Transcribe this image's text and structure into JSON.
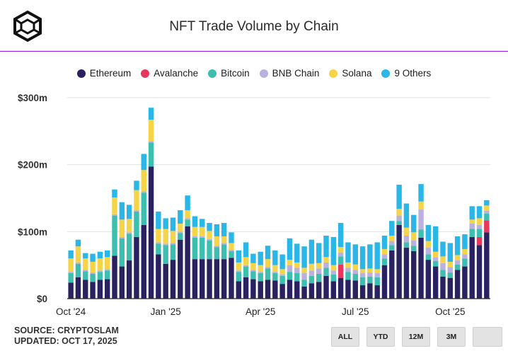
{
  "title": "NFT Trade Volume by Chain",
  "source": "SOURCE: CRYPTOSLAM",
  "updated": "UPDATED: OCT 17, 2025",
  "buttons": [
    "ALL",
    "YTD",
    "12M",
    "3M",
    ""
  ],
  "chart_data": {
    "type": "bar",
    "stacked": true,
    "x_tick_labels": [
      "Oct '24",
      "Jan '25",
      "Apr '25",
      "Jul '25",
      "Oct '25"
    ],
    "x_tick_index": [
      0,
      13,
      26,
      39,
      52
    ],
    "y_tick_labels": [
      "$0",
      "$100m",
      "$200m",
      "$300m"
    ],
    "ylim": [
      0,
      300
    ],
    "y_unit": "$m",
    "grid": true,
    "legend_position": "top",
    "series": [
      {
        "name": "Ethereum",
        "color": "#2a2160",
        "values": [
          24,
          32,
          28,
          25,
          28,
          29,
          64,
          48,
          57,
          92,
          110,
          197,
          66,
          52,
          58,
          88,
          108,
          59,
          59,
          59,
          59,
          59,
          61,
          26,
          32,
          29,
          26,
          28,
          27,
          22,
          28,
          26,
          18,
          23,
          25,
          34,
          26,
          31,
          28,
          27,
          20,
          23,
          20,
          50,
          72,
          110,
          76,
          71,
          91,
          58,
          48,
          33,
          31,
          43,
          48,
          92,
          80,
          99
        ]
      },
      {
        "name": "Avalanche",
        "color": "#e8365d",
        "values": [
          0,
          0,
          0,
          0,
          0,
          0,
          0,
          0,
          0,
          0,
          0,
          0,
          0,
          0,
          0,
          0,
          0,
          0,
          0,
          0,
          0,
          0,
          0,
          0,
          0,
          0,
          0,
          0,
          0,
          0,
          0,
          0,
          0,
          0,
          0,
          0,
          0,
          20,
          0,
          0,
          0,
          0,
          0,
          0,
          0,
          0,
          0,
          0,
          0,
          0,
          0,
          0,
          0,
          0,
          0,
          0,
          12,
          18
        ]
      },
      {
        "name": "Bitcoin",
        "color": "#3dbfb0",
        "values": [
          14,
          20,
          13,
          12,
          12,
          13,
          60,
          42,
          40,
          38,
          48,
          36,
          16,
          28,
          23,
          10,
          10,
          32,
          32,
          28,
          18,
          22,
          10,
          14,
          16,
          12,
          12,
          17,
          11,
          12,
          12,
          12,
          10,
          11,
          12,
          12,
          10,
          12,
          12,
          10,
          12,
          10,
          12,
          10,
          8,
          6,
          8,
          8,
          12,
          8,
          8,
          10,
          8,
          8,
          12,
          12,
          12,
          10
        ]
      },
      {
        "name": "BNB Chain",
        "color": "#b9b1e0",
        "values": [
          2,
          2,
          2,
          2,
          2,
          2,
          2,
          2,
          2,
          2,
          2,
          2,
          2,
          2,
          2,
          2,
          2,
          2,
          2,
          2,
          2,
          2,
          2,
          2,
          2,
          2,
          2,
          2,
          2,
          2,
          10,
          8,
          10,
          8,
          8,
          8,
          6,
          6,
          6,
          6,
          6,
          6,
          6,
          6,
          6,
          8,
          10,
          8,
          30,
          10,
          6,
          10,
          8,
          6,
          6,
          8,
          6,
          4
        ]
      },
      {
        "name": "Solana",
        "color": "#f5d547",
        "values": [
          20,
          24,
          17,
          16,
          18,
          18,
          25,
          26,
          20,
          30,
          32,
          32,
          20,
          22,
          18,
          12,
          12,
          14,
          14,
          12,
          14,
          10,
          10,
          12,
          12,
          10,
          10,
          12,
          10,
          8,
          8,
          8,
          8,
          10,
          8,
          8,
          8,
          8,
          8,
          8,
          6,
          6,
          6,
          8,
          8,
          10,
          12,
          12,
          12,
          10,
          8,
          10,
          8,
          8,
          8,
          6,
          10,
          8
        ]
      },
      {
        "name": "9 Others",
        "color": "#2bb6e8",
        "values": [
          12,
          10,
          8,
          12,
          10,
          10,
          12,
          26,
          21,
          14,
          24,
          18,
          26,
          16,
          20,
          20,
          22,
          16,
          12,
          12,
          18,
          20,
          16,
          18,
          22,
          14,
          20,
          20,
          22,
          22,
          32,
          28,
          32,
          36,
          30,
          32,
          42,
          36,
          30,
          30,
          34,
          36,
          40,
          20,
          22,
          36,
          36,
          26,
          26,
          24,
          38,
          22,
          28,
          28,
          22,
          20,
          18,
          8
        ]
      }
    ]
  },
  "icons": {
    "logo": "cube-logo-icon"
  }
}
